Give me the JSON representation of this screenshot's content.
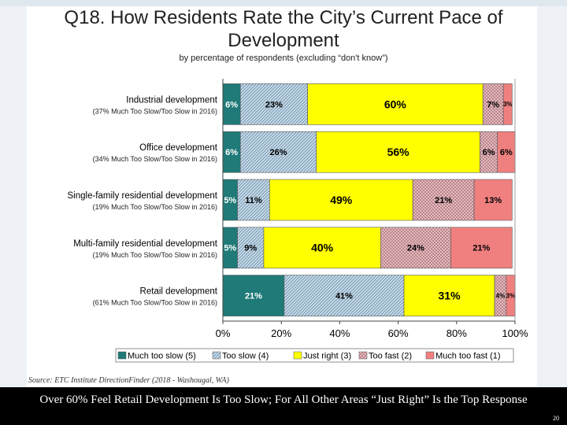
{
  "slide": {
    "title_line1": "Q18. How Residents Rate the City’s Current Pace of",
    "title_line2": "Development",
    "subtitle": "by percentage of respondents (excluding “don't know”)",
    "source": "Source: ETC Institute DirectionFinder (2018 - Washougal, WA)",
    "caption": "Over 60% Feel Retail Development Is Too Slow; For All Other Areas “Just Right” Is the Top Response",
    "page_number": "20"
  },
  "chart_data": {
    "type": "bar",
    "orientation": "horizontal",
    "stacked": true,
    "categories": [
      "Industrial development",
      "Office development",
      "Single-family residential development",
      "Multi-family residential development",
      "Retail development"
    ],
    "category_notes": [
      "(37% Much Too Slow/Too Slow in 2016)",
      "(34% Much Too Slow/Too Slow in 2016)",
      "(19% Much Too Slow/Too Slow in 2016)",
      "(19% Much Too Slow/Too Slow in 2016)",
      "(61% Much Too Slow/Too Slow in 2016)"
    ],
    "series": [
      {
        "name": "Much too slow (5)",
        "color": "#1f7a78",
        "pattern": "solid",
        "values": [
          6,
          6,
          5,
          5,
          21
        ],
        "labels": [
          "6%",
          "6%",
          "5%",
          "5%",
          "21%"
        ]
      },
      {
        "name": "Too slow (4)",
        "color": "#a9c9dd",
        "pattern": "diagonal",
        "values": [
          23,
          26,
          11,
          9,
          41
        ],
        "labels": [
          "23%",
          "26%",
          "11%",
          "9%",
          "41%"
        ]
      },
      {
        "name": "Just right (3)",
        "color": "#ffff00",
        "pattern": "solid",
        "values": [
          60,
          56,
          49,
          40,
          31
        ],
        "labels": [
          "60%",
          "56%",
          "49%",
          "40%",
          "31%"
        ]
      },
      {
        "name": "Too fast (2)",
        "color": "#d9a3a8",
        "pattern": "crosshatch",
        "values": [
          7,
          6,
          21,
          24,
          4
        ],
        "labels": [
          "7%",
          "6%",
          "21%",
          "24%",
          "4%"
        ]
      },
      {
        "name": "Much too fast (1)",
        "color": "#f08080",
        "pattern": "solid",
        "values": [
          3,
          6,
          13,
          21,
          3
        ],
        "labels": [
          "3%",
          "6%",
          "13%",
          "21%",
          "3%"
        ]
      }
    ],
    "xlim": [
      0,
      100
    ],
    "xticks": [
      "0%",
      "20%",
      "40%",
      "60%",
      "80%",
      "100%"
    ],
    "legend_position": "bottom",
    "gridlines": false
  }
}
